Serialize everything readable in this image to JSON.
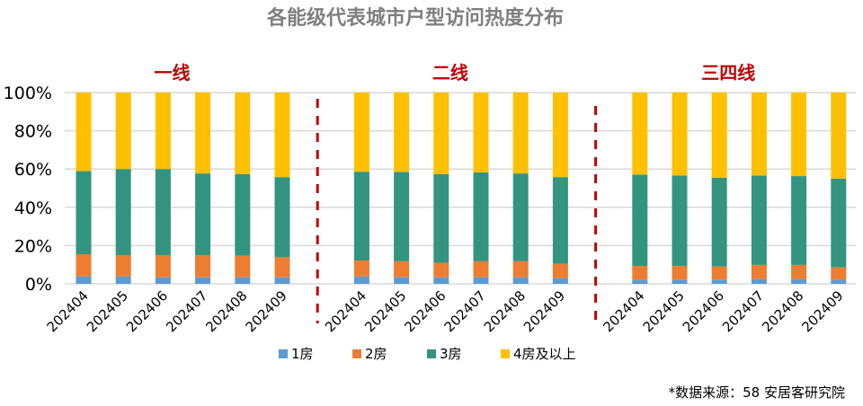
{
  "chart_data": {
    "type": "bar",
    "stacked": true,
    "title": "各能级代表城市户型访问热度分布",
    "groups": [
      {
        "label": "一线",
        "categories": [
          "202404",
          "202405",
          "202406",
          "202407",
          "202408",
          "202409"
        ]
      },
      {
        "label": "二线",
        "categories": [
          "202404",
          "202405",
          "202406",
          "202407",
          "202408",
          "202409"
        ]
      },
      {
        "label": "三四线",
        "categories": [
          "202404",
          "202405",
          "202406",
          "202407",
          "202408",
          "202409"
        ]
      }
    ],
    "series": [
      {
        "name": "1房",
        "color": "#5B9BD5",
        "values": [
          [
            3.8,
            3.8,
            3.4,
            3.4,
            3.4,
            3.4
          ],
          [
            3.8,
            3.4,
            3.4,
            3.4,
            3.4,
            3.0
          ],
          [
            2.2,
            2.2,
            2.2,
            2.5,
            2.5,
            2.2
          ]
        ]
      },
      {
        "name": "2房",
        "color": "#ED7D31",
        "values": [
          [
            11.7,
            11.2,
            11.6,
            11.6,
            11.3,
            10.5
          ],
          [
            8.4,
            8.4,
            7.6,
            8.4,
            8.4,
            7.5
          ],
          [
            7.2,
            7.2,
            6.9,
            7.4,
            7.4,
            6.4
          ]
        ]
      },
      {
        "name": "3房",
        "color": "#339480",
        "values": [
          [
            43.4,
            45.0,
            45.0,
            42.7,
            42.7,
            41.9
          ],
          [
            46.4,
            46.7,
            46.4,
            46.4,
            45.9,
            45.3
          ],
          [
            47.7,
            47.2,
            46.4,
            46.7,
            46.4,
            46.4
          ]
        ]
      },
      {
        "name": "4房及以上",
        "color": "#FFC000",
        "values": [
          [
            41.1,
            40.0,
            40.0,
            42.3,
            42.6,
            44.2
          ],
          [
            41.4,
            41.5,
            42.6,
            41.8,
            42.3,
            44.2
          ],
          [
            42.9,
            43.4,
            44.5,
            43.4,
            43.7,
            45.0
          ]
        ]
      }
    ],
    "ylim": [
      0,
      100
    ],
    "yticks": [
      "0%",
      "20%",
      "40%",
      "60%",
      "80%",
      "100%"
    ],
    "grid": true,
    "legend": "bottom",
    "separator_color": "#C00000",
    "group_label_color": "#C00000"
  },
  "source": "*数据来源：58 安居客研究院"
}
